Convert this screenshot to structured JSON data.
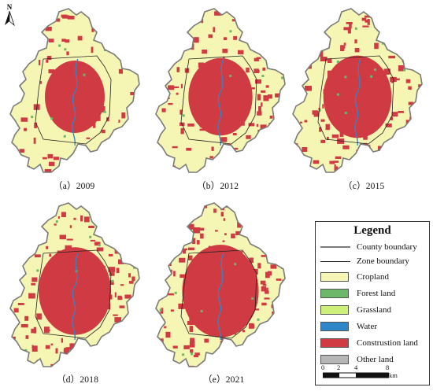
{
  "panels": [
    {
      "caption": "（a）2009",
      "year": 2009
    },
    {
      "caption": "（b）2012",
      "year": 2012
    },
    {
      "caption": "（c）2015",
      "year": 2015
    },
    {
      "caption": "（d）2018",
      "year": 2018
    },
    {
      "caption": "（e）2021",
      "year": 2021
    }
  ],
  "legend": {
    "title": "Legend",
    "items": [
      {
        "label": "County boundary",
        "kind": "line",
        "color": "#7a7a7a"
      },
      {
        "label": "Zone boundary",
        "kind": "line",
        "color": "#222222"
      },
      {
        "label": "Cropland",
        "kind": "swatch",
        "color": "#f6f6b4"
      },
      {
        "label": "Forest land",
        "kind": "swatch",
        "color": "#6bb86a"
      },
      {
        "label": "Grassland",
        "kind": "swatch",
        "color": "#cdf07a"
      },
      {
        "label": "Water",
        "kind": "swatch",
        "color": "#2e86c8"
      },
      {
        "label": "Construstion land",
        "kind": "swatch",
        "color": "#d03a42"
      },
      {
        "label": "Other land",
        "kind": "swatch",
        "color": "#b6b6b6"
      }
    ]
  },
  "scale_bar": {
    "ticks": [
      "0",
      "2",
      "4",
      "8"
    ],
    "unit": "km"
  },
  "north_arrow": {
    "label": "N"
  },
  "colors": {
    "cropland": "#f6f6b4",
    "construction": "#d03a42",
    "forest": "#6bb86a",
    "water": "#2e86c8",
    "county_boundary": "#7a7a7a",
    "zone_boundary": "#222222"
  }
}
